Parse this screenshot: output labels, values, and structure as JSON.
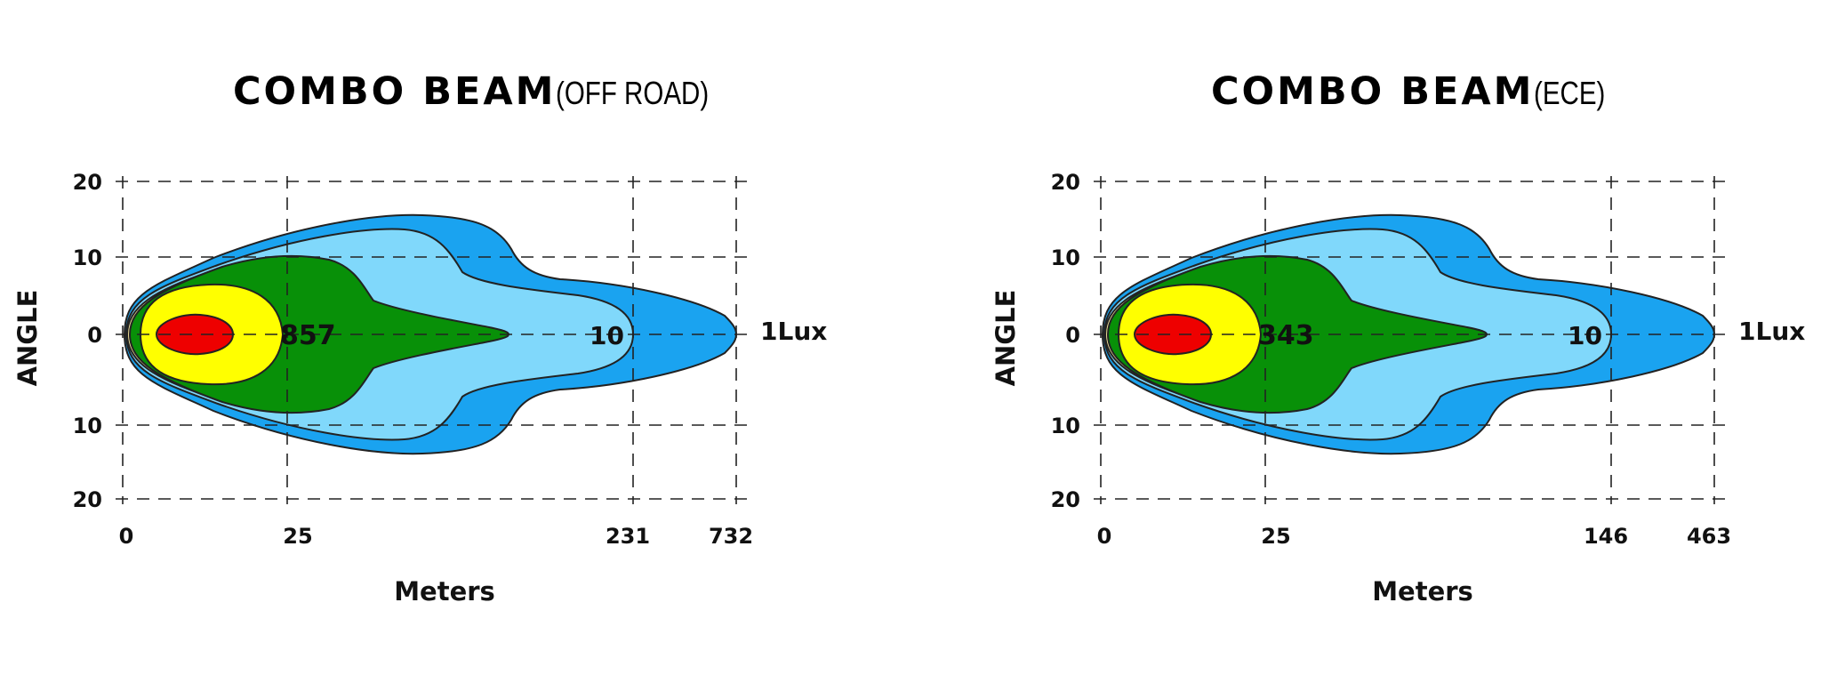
{
  "chart_data": [
    {
      "type": "area",
      "title": "COMBO  BEAM",
      "subtitle": "(OFF ROAD)",
      "xlabel": "Meters",
      "ylabel": "ANGLE",
      "x_ticks": [
        "0",
        "25",
        "231",
        "732"
      ],
      "y_ticks": [
        "20",
        "10",
        "0",
        "10",
        "20"
      ],
      "grid": true,
      "contour_labels": [
        "857",
        "10",
        "1Lux"
      ],
      "colors": [
        "#e8da94",
        "#1aa3f0",
        "#80d8fb",
        "#089008",
        "#ffff00",
        "#ee0000"
      ]
    },
    {
      "type": "area",
      "title": "COMBO  BEAM",
      "subtitle": "(ECE)",
      "xlabel": "Meters",
      "ylabel": "ANGLE",
      "x_ticks": [
        "0",
        "25",
        "146",
        "463"
      ],
      "y_ticks": [
        "20",
        "10",
        "0",
        "10",
        "20"
      ],
      "grid": true,
      "contour_labels": [
        "343",
        "10",
        "1Lux"
      ],
      "colors": [
        "#e8da94",
        "#1aa3f0",
        "#80d8fb",
        "#089008",
        "#ffff00",
        "#ee0000"
      ]
    }
  ]
}
